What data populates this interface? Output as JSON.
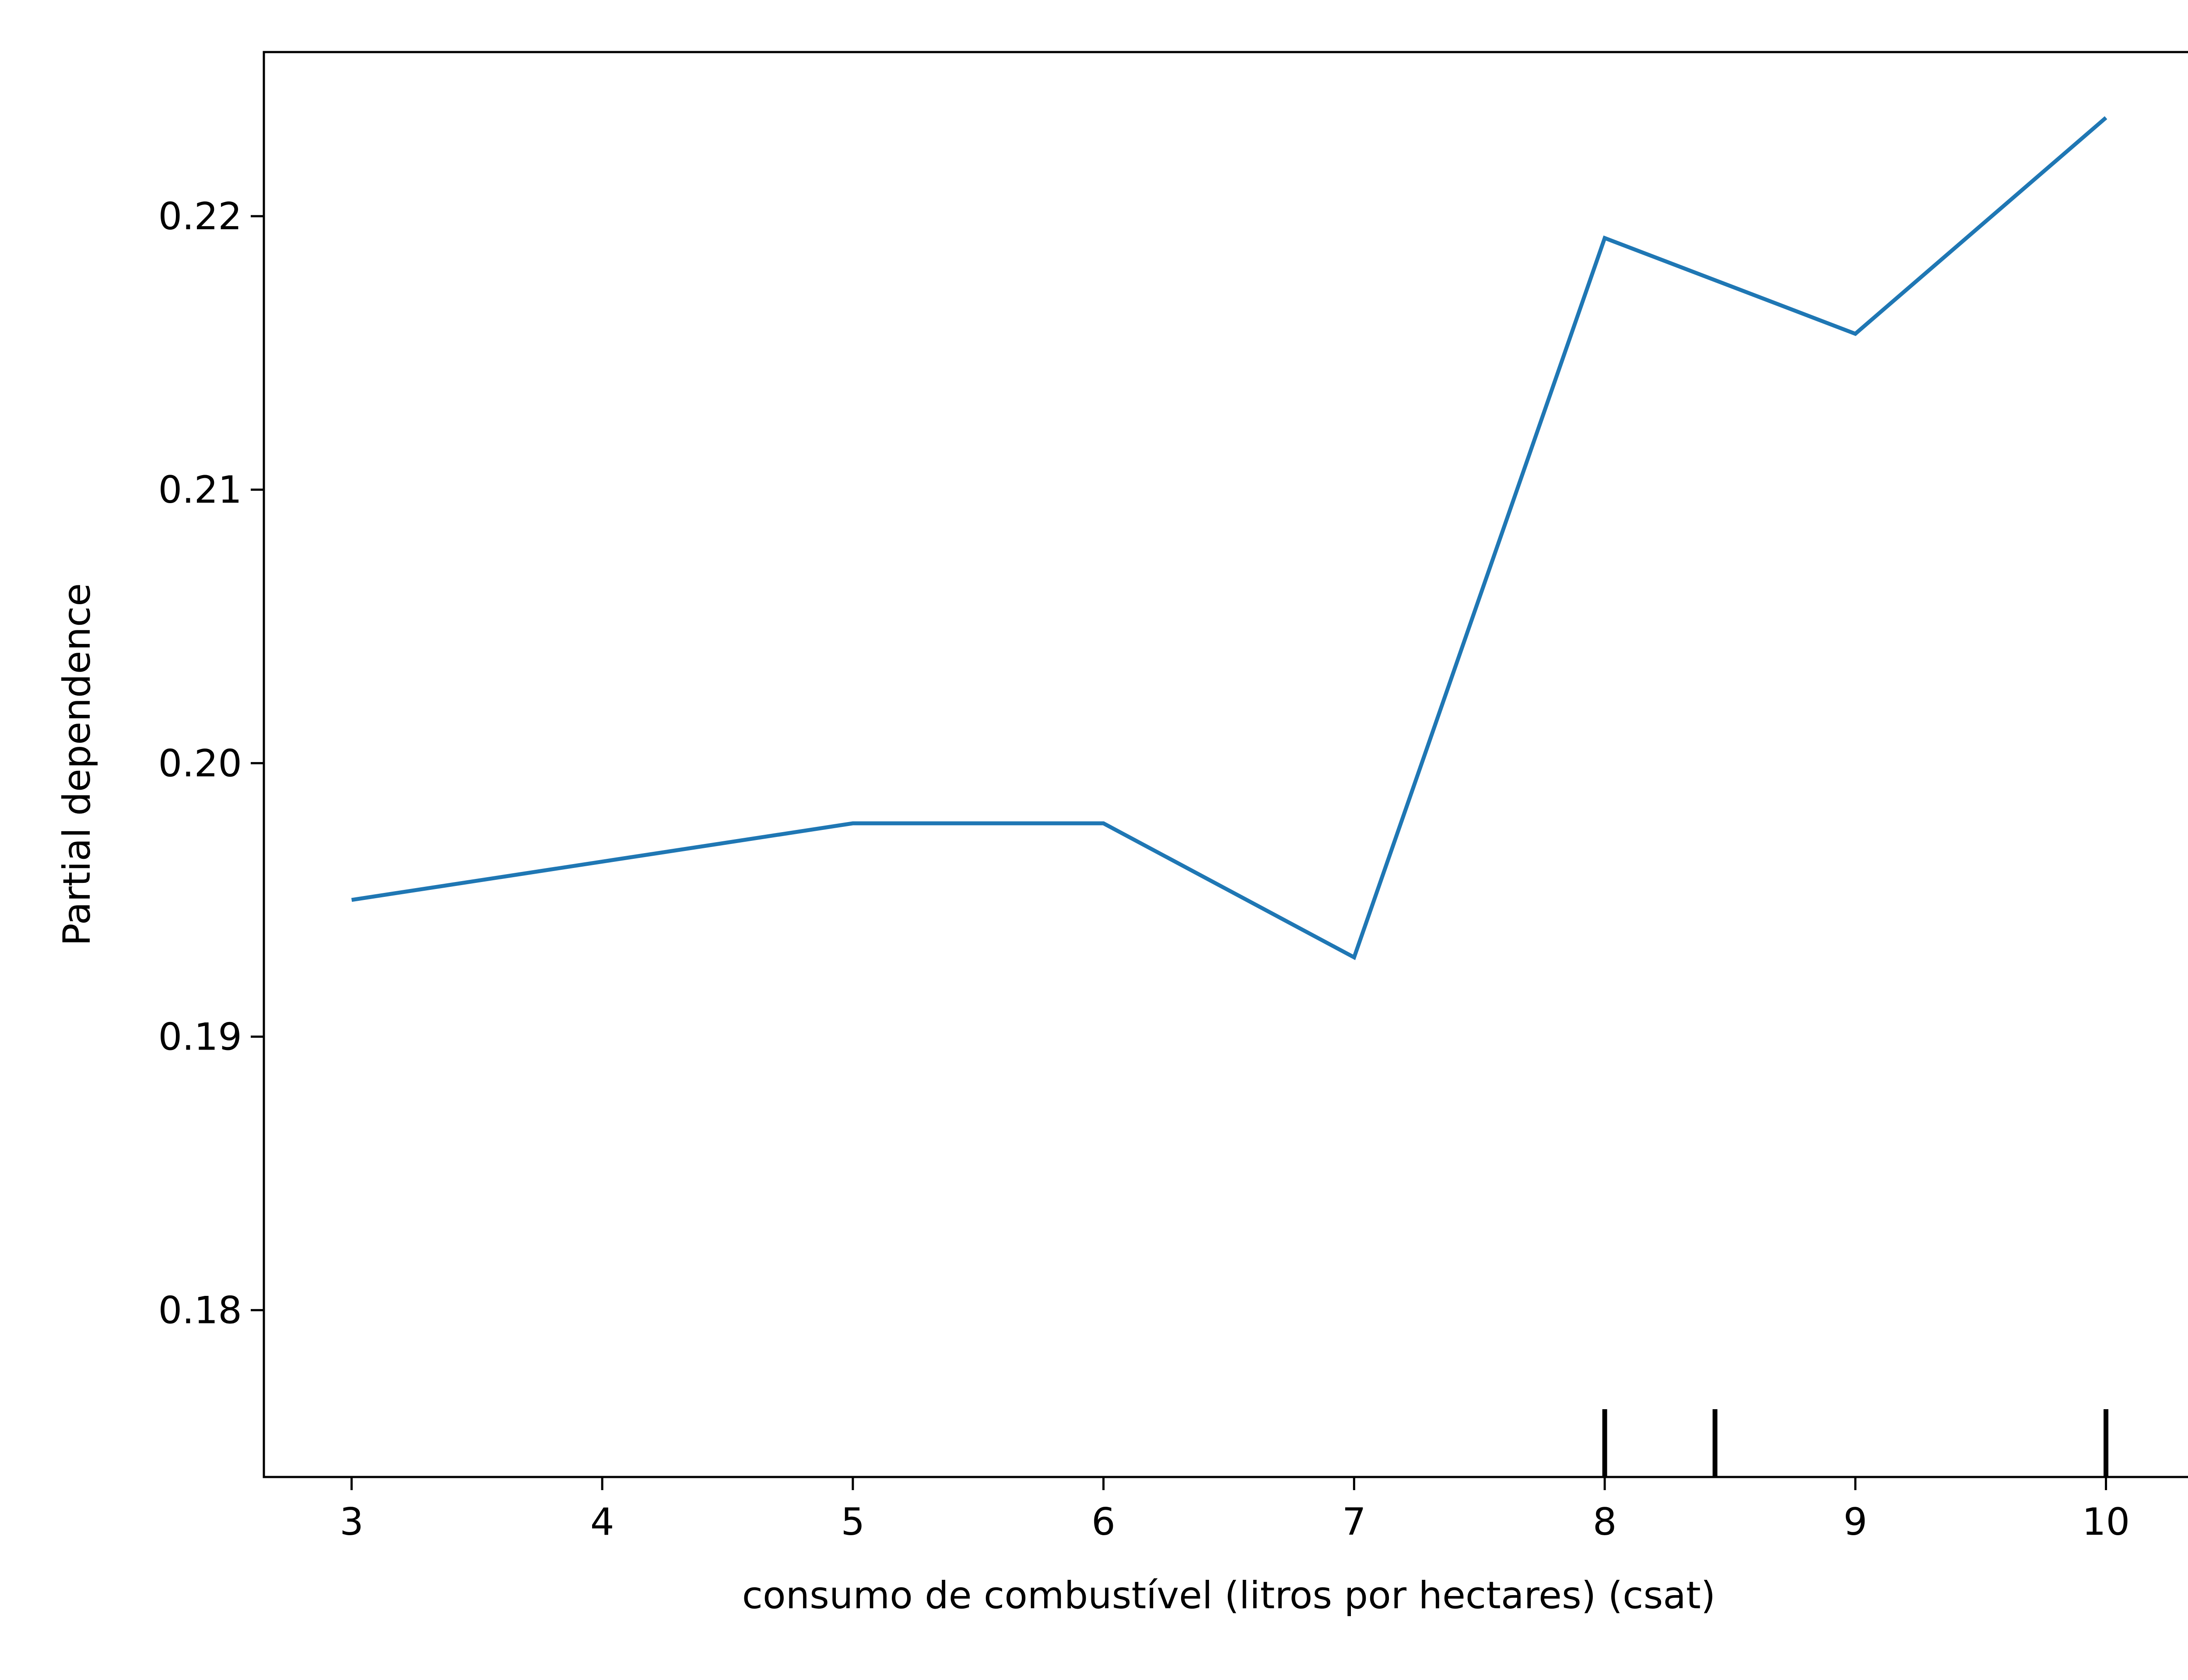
{
  "chart_data": {
    "type": "line",
    "xlabel": "consumo de combustível (litros por hectares) (csat)",
    "ylabel": "Partial dependence",
    "xlim": [
      2.65,
      10.35
    ],
    "ylim": [
      0.1739,
      0.226
    ],
    "x_ticks": [
      3,
      4,
      5,
      6,
      7,
      8,
      9,
      10
    ],
    "x_tick_labels": [
      "3",
      "4",
      "5",
      "6",
      "7",
      "8",
      "9",
      "10"
    ],
    "y_ticks": [
      0.18,
      0.19,
      0.2,
      0.21,
      0.22
    ],
    "y_tick_labels": [
      "0.18",
      "0.19",
      "0.20",
      "0.21",
      "0.22"
    ],
    "series": [
      {
        "color": "#1f77b4",
        "x": [
          3,
          5,
          6,
          7,
          8,
          9,
          10
        ],
        "y": [
          0.195,
          0.1978,
          0.1978,
          0.1929,
          0.2192,
          0.2157,
          0.2236
        ]
      }
    ],
    "rug": [
      8,
      8.44,
      10
    ],
    "grid": false
  }
}
